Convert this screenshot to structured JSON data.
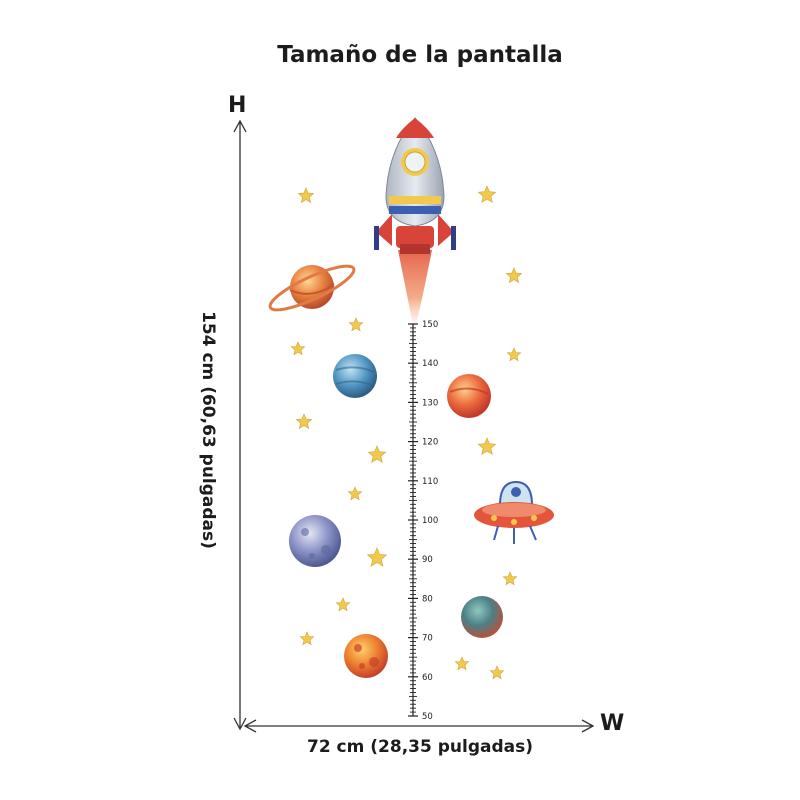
{
  "title": "Tamaño de la pantalla",
  "dimensions": {
    "height_axis_letter": "H",
    "width_axis_letter": "W",
    "height_label": "154 cm (60,63 pulgadas)",
    "width_label": "72 cm (28,35 pulgadas)"
  },
  "ruler": {
    "labels": [
      "150",
      "140",
      "130",
      "120",
      "110",
      "100",
      "90",
      "80",
      "70",
      "60",
      "50"
    ]
  },
  "colors": {
    "text": "#1c1c1c",
    "star": "#f2c94c",
    "rocket_body": "#c9d2dc",
    "rocket_red": "#d9443a"
  },
  "decorations": {
    "rocket": "rocket-icon",
    "ufo": "ufo-icon",
    "planets": [
      "ringed-planet",
      "blue-planet",
      "red-planet",
      "purple-planet",
      "teal-planet",
      "orange-planet"
    ],
    "stars": "star-icon"
  }
}
